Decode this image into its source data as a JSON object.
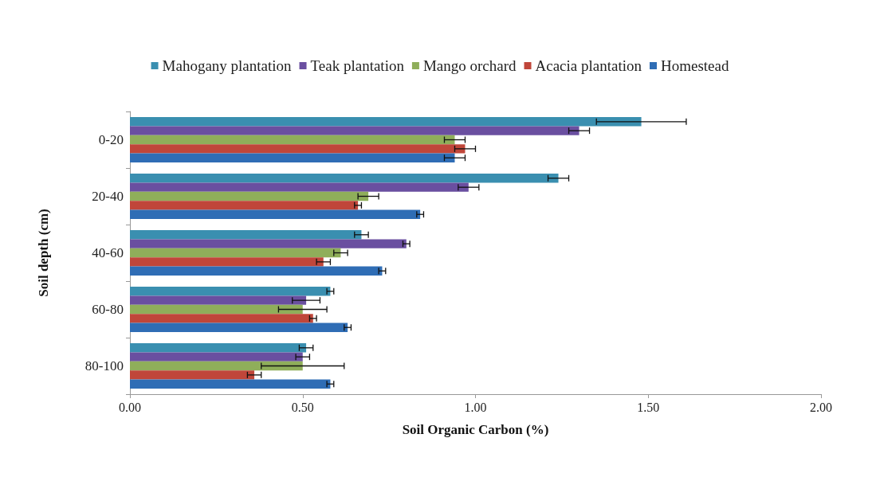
{
  "chart_data": {
    "type": "bar",
    "orientation": "horizontal",
    "xlabel": "Soil Organic Carbon (%)",
    "ylabel": "Soil depth (cm)",
    "categories": [
      "0-20",
      "20-40",
      "40-60",
      "60-80",
      "80-100"
    ],
    "xlim": [
      0,
      2
    ],
    "xticks": [
      {
        "value": 0,
        "label": "0.00"
      },
      {
        "value": 0.5,
        "label": "0.50"
      },
      {
        "value": 1,
        "label": "1.00"
      },
      {
        "value": 1.5,
        "label": "1.50"
      },
      {
        "value": 2,
        "label": "2.00"
      }
    ],
    "grid": false,
    "legend": "top",
    "series": [
      {
        "name": "Mahogany plantation",
        "color": "#3a8fb0",
        "values": [
          1.48,
          1.24,
          0.67,
          0.58,
          0.51
        ],
        "errors": [
          0.13,
          0.03,
          0.02,
          0.01,
          0.02
        ]
      },
      {
        "name": "Teak plantation",
        "color": "#6a4fa0",
        "values": [
          1.3,
          0.98,
          0.8,
          0.51,
          0.5
        ],
        "errors": [
          0.03,
          0.03,
          0.01,
          0.04,
          0.02
        ]
      },
      {
        "name": "Mango orchard",
        "color": "#8fae5a",
        "values": [
          0.94,
          0.69,
          0.61,
          0.5,
          0.5
        ],
        "errors": [
          0.03,
          0.03,
          0.02,
          0.07,
          0.12
        ]
      },
      {
        "name": "Acacia plantation",
        "color": "#c0463a",
        "values": [
          0.97,
          0.66,
          0.56,
          0.53,
          0.36
        ],
        "errors": [
          0.03,
          0.01,
          0.02,
          0.01,
          0.02
        ]
      },
      {
        "name": "Homestead",
        "color": "#2f6db5",
        "values": [
          0.94,
          0.84,
          0.73,
          0.63,
          0.58
        ],
        "errors": [
          0.03,
          0.01,
          0.01,
          0.01,
          0.01
        ]
      }
    ]
  }
}
